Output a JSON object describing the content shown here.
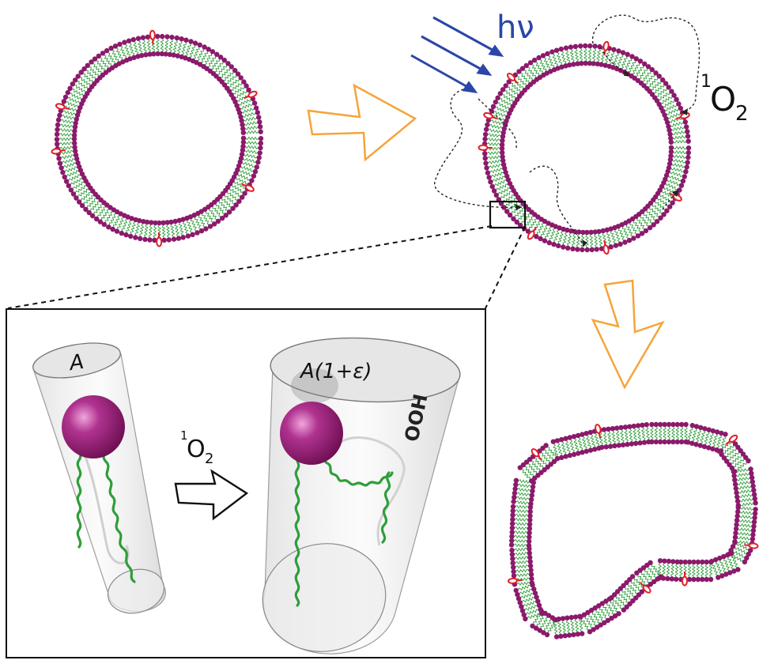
{
  "labels": {
    "hv": "hν",
    "singlet_oxygen_top": {
      "sup": "1",
      "base": "O",
      "sub": "2"
    },
    "singlet_oxygen_inset": {
      "sup": "1",
      "base": "O",
      "sub": "2"
    },
    "area_before": "A",
    "area_after": "A(1+ε)",
    "hydroperoxide": "OOH"
  },
  "colors": {
    "headgroup": "#8b1a6b",
    "tail": "#2e9e3a",
    "photosensitizer": "#e0202a",
    "process_arrow": "#f5a43a",
    "light_arrow": "#2a46a8",
    "text": "#111111"
  },
  "icons": {
    "light": "light-rays-icon",
    "process": "hollow-arrow-icon"
  }
}
